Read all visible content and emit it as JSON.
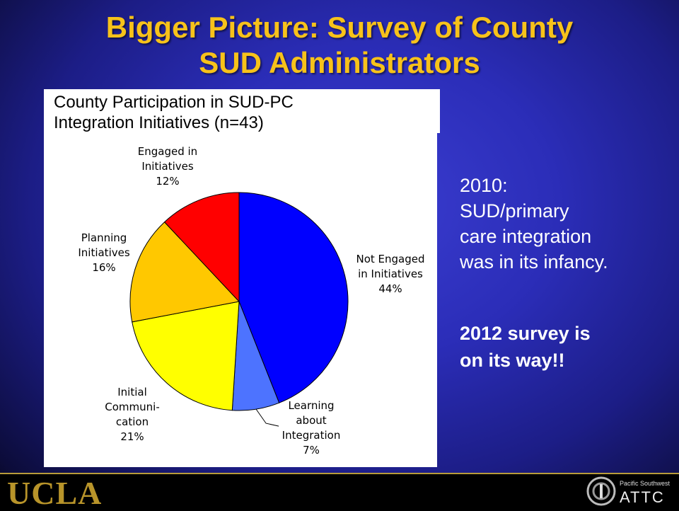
{
  "slide": {
    "title_line1": "Bigger Picture: Survey of County",
    "title_line2": "SUD Administrators",
    "side_text_lines": [
      "2010:",
      "SUD/primary",
      "care integration",
      "was in its infancy."
    ],
    "side_bold_lines": [
      "2012 survey is",
      "on its way!!"
    ],
    "footer": {
      "ucla_logo_text": "UCLA",
      "attc_small": "Pacific Southwest",
      "attc_big": "ATTC"
    },
    "colors": {
      "title": "#f7c21a",
      "background": "#2b2db8",
      "footer_gold": "#b8942a"
    }
  },
  "chart_data": {
    "type": "pie",
    "title_lines": [
      "County Participation in SUD-PC",
      "Integration Initiatives (n=43)"
    ],
    "slices": [
      {
        "label_lines": [
          "Not Engaged",
          "in Initiatives"
        ],
        "percent_label": "44%",
        "value": 44,
        "color": "#0000ff"
      },
      {
        "label_lines": [
          "Learning",
          "about",
          "Integration"
        ],
        "percent_label": "7%",
        "value": 7,
        "color": "#4d73ff"
      },
      {
        "label_lines": [
          "Initial",
          "Communi-",
          "cation"
        ],
        "percent_label": "21%",
        "value": 21,
        "color": "#ffff00"
      },
      {
        "label_lines": [
          "Planning",
          "Initiatives"
        ],
        "percent_label": "16%",
        "value": 16,
        "color": "#ffc800"
      },
      {
        "label_lines": [
          "Engaged in",
          "Initiatives"
        ],
        "percent_label": "12%",
        "value": 12,
        "color": "#ff0000"
      }
    ]
  }
}
